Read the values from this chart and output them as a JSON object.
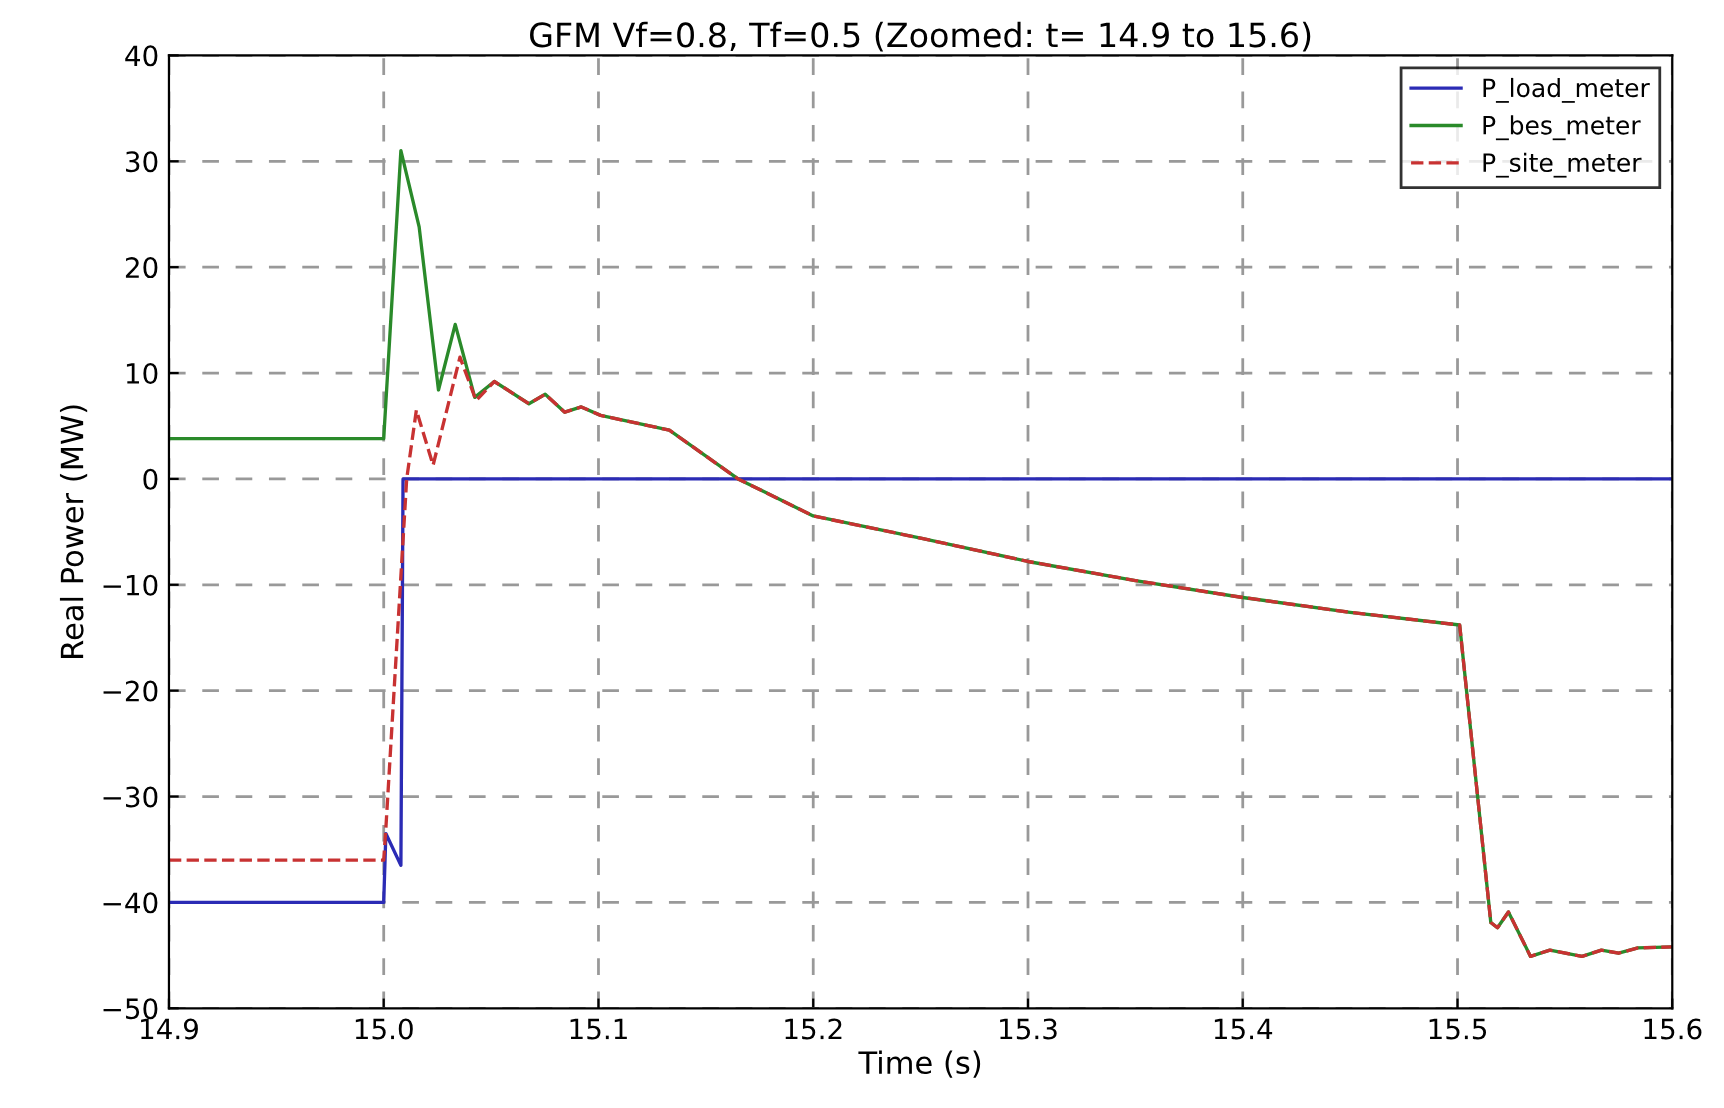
{
  "chart_data": {
    "type": "line",
    "title": "GFM Vf=0.8, Tf=0.5 (Zoomed: t= 14.9 to 15.6)",
    "xlabel": "Time (s)",
    "ylabel": "Real Power (MW)",
    "xlim": [
      14.9,
      15.6
    ],
    "ylim": [
      -50,
      40
    ],
    "xticks": [
      {
        "value": 14.9,
        "label": "14.9"
      },
      {
        "value": 15.0,
        "label": "15.0"
      },
      {
        "value": 15.1,
        "label": "15.1"
      },
      {
        "value": 15.2,
        "label": "15.2"
      },
      {
        "value": 15.3,
        "label": "15.3"
      },
      {
        "value": 15.4,
        "label": "15.4"
      },
      {
        "value": 15.5,
        "label": "15.5"
      },
      {
        "value": 15.6,
        "label": "15.6"
      }
    ],
    "yticks": [
      {
        "value": -50,
        "label": "−50"
      },
      {
        "value": -40,
        "label": "−40"
      },
      {
        "value": -30,
        "label": "−30"
      },
      {
        "value": -20,
        "label": "−20"
      },
      {
        "value": -10,
        "label": "−10"
      },
      0,
      10,
      20,
      30,
      40
    ],
    "grid": true,
    "legend": "top right",
    "series": [
      {
        "name": "P_load_meter",
        "color": "#2b2bb5",
        "line_style": "solid",
        "x": [
          14.9,
          15.0,
          15.001,
          15.008,
          15.009,
          15.6
        ],
        "values": [
          -40,
          -40,
          -33.5,
          -36.5,
          0,
          0
        ]
      },
      {
        "name": "P_bes_meter",
        "color": "#2a8a2a",
        "line_style": "solid",
        "x": [
          14.9,
          15.0,
          15.008,
          15.0165,
          15.0255,
          15.0333,
          15.0424,
          15.0515,
          15.0676,
          15.0752,
          15.0843,
          15.092,
          15.101,
          15.133,
          15.165,
          15.2,
          15.25,
          15.3,
          15.35,
          15.4,
          15.45,
          15.501,
          15.5155,
          15.5186,
          15.5237,
          15.534,
          15.543,
          15.558,
          15.567,
          15.575,
          15.584,
          15.6
        ],
        "values": [
          3.8,
          3.8,
          31,
          23.8,
          8.4,
          14.6,
          7.7,
          9.2,
          7.1,
          8.0,
          6.3,
          6.8,
          6.0,
          4.6,
          0,
          -3.5,
          -5.6,
          -7.8,
          -9.6,
          -11.2,
          -12.6,
          -13.8,
          -41.9,
          -42.4,
          -40.9,
          -45.1,
          -44.5,
          -45.1,
          -44.5,
          -44.8,
          -44.3,
          -44.2
        ]
      },
      {
        "name": "P_site_meter",
        "color": "#c83232",
        "line_style": "dashed",
        "x": [
          14.9,
          15.0,
          15.001,
          15.0107,
          15.0152,
          15.023,
          15.0355,
          15.043,
          15.0515,
          15.0676,
          15.0752,
          15.0843,
          15.092,
          15.101,
          15.133,
          15.165,
          15.2,
          15.25,
          15.3,
          15.35,
          15.4,
          15.45,
          15.501,
          15.5155,
          15.5186,
          15.5237,
          15.534,
          15.543,
          15.558,
          15.567,
          15.575,
          15.584,
          15.6
        ],
        "values": [
          -36,
          -36,
          -33,
          0,
          6.5,
          1.3,
          11.5,
          7.4,
          9.2,
          7.1,
          8.0,
          6.3,
          6.8,
          6.0,
          4.6,
          0,
          -3.5,
          -5.6,
          -7.8,
          -9.6,
          -11.2,
          -12.6,
          -13.8,
          -41.9,
          -42.4,
          -40.9,
          -45.1,
          -44.5,
          -45.1,
          -44.5,
          -44.8,
          -44.3,
          -44.2
        ]
      }
    ]
  }
}
